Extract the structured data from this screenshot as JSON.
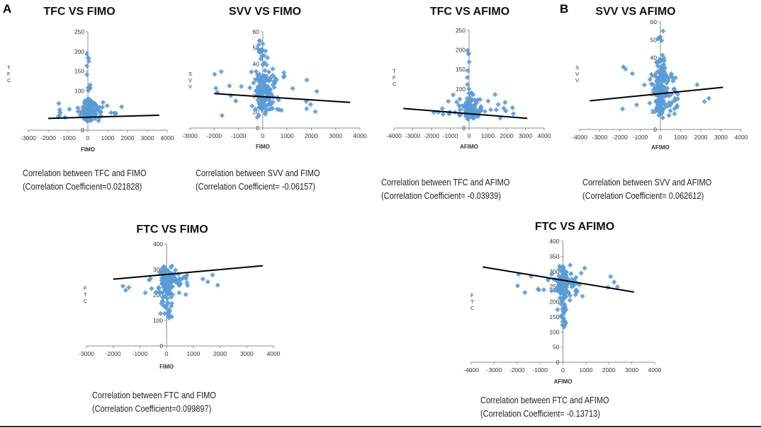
{
  "panel_labels": {
    "a": "A",
    "b": "B"
  },
  "colors": {
    "marker": "#5b9bd5",
    "trendline": "#000000",
    "axis": "#8c8c8c"
  },
  "chart_data": [
    {
      "id": "tfc-fimo",
      "type": "scatter",
      "title": "TFC VS FIMO",
      "xlabel": "FIMO",
      "ylabel": "TFC",
      "xlim": [
        -3000,
        4000
      ],
      "ylim": [
        0,
        250
      ],
      "xticks": [
        -3000,
        -2000,
        -1000,
        0,
        1000,
        2000,
        3000,
        4000
      ],
      "yticks": [
        0,
        50,
        100,
        150,
        200,
        250
      ],
      "trendline": [
        [
          -2000,
          30
        ],
        [
          3600,
          38
        ]
      ],
      "caption": {
        "line1": "Correlation between TFC and FIMO",
        "line2": "(Correlation Coefficient=0.021828)"
      }
    },
    {
      "id": "svv-fimo",
      "type": "scatter",
      "title": "SVV VS FIMO",
      "xlabel": "FIMO",
      "ylabel": "SVV",
      "xlim": [
        -3000,
        4000
      ],
      "ylim": [
        0,
        60
      ],
      "xticks": [
        -3000,
        -2000,
        -1000,
        0,
        1000,
        2000,
        3000,
        4000
      ],
      "yticks": [
        0,
        10,
        20,
        30,
        40,
        50,
        60
      ],
      "trendline": [
        [
          -2000,
          21.5
        ],
        [
          3600,
          16
        ]
      ],
      "caption": {
        "line1": "Correlation between SVV and FIMO",
        "line2": "(Correlation Coefficient= -0.06157)"
      }
    },
    {
      "id": "tfc-afimo",
      "type": "scatter",
      "title": "TFC VS AFIMO",
      "xlabel": "AFIMO",
      "ylabel": "TFC",
      "xlim": [
        -4000,
        4000
      ],
      "ylim": [
        0,
        250
      ],
      "xticks": [
        -4000,
        -3000,
        -2000,
        -1000,
        0,
        1000,
        2000,
        3000,
        4000
      ],
      "yticks": [
        0,
        50,
        100,
        150,
        200,
        250
      ],
      "trendline": [
        [
          -3500,
          50
        ],
        [
          3100,
          25
        ]
      ],
      "caption": {
        "line1": "Correlation between TFC and AFIMO",
        "line2": "(Correlation Coefficient= -0.03939)"
      }
    },
    {
      "id": "svv-afimo",
      "type": "scatter",
      "title": "SVV VS AFIMO",
      "xlabel": "AFIMO",
      "ylabel": "SVV",
      "xlim": [
        -4000,
        4000
      ],
      "ylim": [
        0,
        60
      ],
      "xticks": [
        -4000,
        -3000,
        -2000,
        -1000,
        0,
        1000,
        2000,
        3000,
        4000
      ],
      "yticks": [
        0,
        10,
        20,
        30,
        40,
        50,
        60
      ],
      "trendline": [
        [
          -3500,
          16
        ],
        [
          3100,
          23.5
        ]
      ],
      "caption": {
        "line1": "Correlation between SVV and AFIMO",
        "line2": "(Correlation Coefficient= 0.062612)"
      }
    },
    {
      "id": "ftc-fimo",
      "type": "scatter",
      "title": "FTC VS FIMO",
      "xlabel": "FIMO",
      "ylabel": "FTC",
      "xlim": [
        -3000,
        4000
      ],
      "ylim": [
        0,
        400
      ],
      "xticks": [
        -3000,
        -2000,
        -1000,
        0,
        1000,
        2000,
        3000,
        4000
      ],
      "yticks": [
        0,
        100,
        200,
        300,
        400
      ],
      "trendline": [
        [
          -2000,
          262
        ],
        [
          3600,
          315
        ]
      ],
      "caption": {
        "line1": "Correlation between FTC and FIMO",
        "line2": "(Correlation Coefficient=0.099897)"
      }
    },
    {
      "id": "ftc-afimo",
      "type": "scatter",
      "title": "FTC VS AFIMO",
      "xlabel": "AFIMO",
      "ylabel": "FTC",
      "xlim": [
        -4000,
        4000
      ],
      "ylim": [
        0,
        400
      ],
      "xticks": [
        -4000,
        -3000,
        -2000,
        -1000,
        0,
        1000,
        2000,
        3000,
        4000
      ],
      "yticks": [
        0,
        50,
        100,
        150,
        200,
        250,
        300,
        350,
        400
      ],
      "trendline": [
        [
          -3500,
          315
        ],
        [
          3100,
          232
        ]
      ],
      "caption": {
        "line1": "Correlation between FTC and AFIMO",
        "line2": "(Correlation Coefficient= -0.13713)"
      }
    }
  ]
}
